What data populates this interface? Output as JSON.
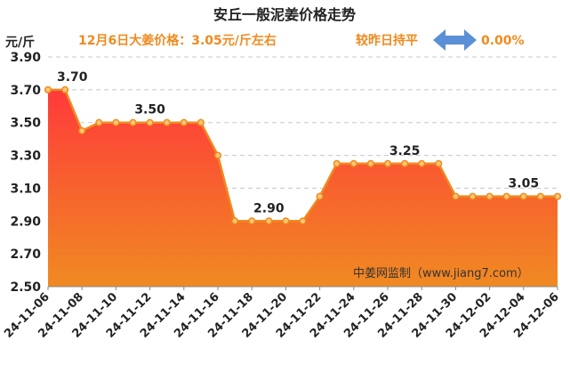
{
  "header": {
    "title": "安丘一般泥姜价格走势",
    "price_note": "12月6日大姜价格：3.05元/斤左右",
    "compare_label": "较昨日持平",
    "change_pct": "0.00%",
    "arrow_icon": "double-arrow-icon",
    "arrow_color": "#5b8fd6",
    "accent_color": "#f08a1e"
  },
  "watermark": "中姜网监制（www.jiang7.com）",
  "chart_data": {
    "type": "area",
    "ylabel": "元/斤",
    "ylim": [
      2.5,
      3.9
    ],
    "yticks": [
      "2.50",
      "2.70",
      "2.90",
      "3.10",
      "3.30",
      "3.50",
      "3.70",
      "3.90"
    ],
    "xtick_labels": [
      "24-11-06",
      "24-11-08",
      "24-11-10",
      "24-11-12",
      "24-11-14",
      "24-11-16",
      "24-11-18",
      "24-11-20",
      "24-11-22",
      "24-11-24",
      "24-11-26",
      "24-11-28",
      "24-11-30",
      "24-12-02",
      "24-12-04",
      "24-12-06"
    ],
    "x": [
      "24-11-06",
      "24-11-07",
      "24-11-08",
      "24-11-09",
      "24-11-10",
      "24-11-11",
      "24-11-12",
      "24-11-13",
      "24-11-14",
      "24-11-15",
      "24-11-16",
      "24-11-17",
      "24-11-18",
      "24-11-19",
      "24-11-20",
      "24-11-21",
      "24-11-22",
      "24-11-23",
      "24-11-24",
      "24-11-25",
      "24-11-26",
      "24-11-27",
      "24-11-28",
      "24-11-29",
      "24-11-30",
      "24-12-01",
      "24-12-02",
      "24-12-03",
      "24-12-04",
      "24-12-05",
      "24-12-06"
    ],
    "values": [
      3.7,
      3.7,
      3.45,
      3.5,
      3.5,
      3.5,
      3.5,
      3.5,
      3.5,
      3.5,
      3.3,
      2.9,
      2.9,
      2.9,
      2.9,
      2.9,
      3.05,
      3.25,
      3.25,
      3.25,
      3.25,
      3.25,
      3.25,
      3.25,
      3.05,
      3.05,
      3.05,
      3.05,
      3.05,
      3.05,
      3.05
    ],
    "annotations": [
      {
        "date": "24-11-06",
        "text": "3.70"
      },
      {
        "date": "24-11-12",
        "text": "3.50"
      },
      {
        "date": "24-11-19",
        "text": "2.90"
      },
      {
        "date": "24-11-27",
        "text": "3.25"
      },
      {
        "date": "24-12-04",
        "text": "3.05"
      }
    ],
    "grid": true,
    "colors": {
      "line": "#f0891e",
      "marker_fill": "#f7c873",
      "area_top": "#ff3a3a",
      "area_bottom": "#f08a22",
      "grid": "#c8c8c8"
    }
  }
}
